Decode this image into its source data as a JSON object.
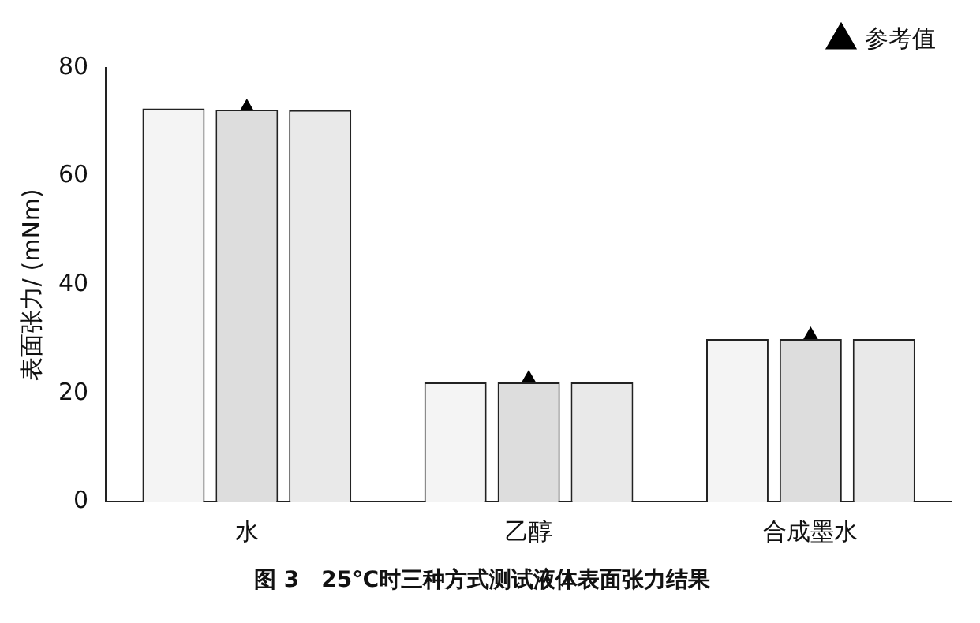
{
  "chart_data": {
    "type": "bar",
    "title": "图 3　25℃时三种方式测试液体表面张力结果",
    "ylabel": "表面张力/ (mNm)",
    "categories": [
      "水",
      "乙醇",
      "合成墨水"
    ],
    "series": [
      {
        "color": "#f4f4f4",
        "values": [
          72.5,
          22,
          30
        ]
      },
      {
        "color": "#dddddd",
        "values": [
          72.3,
          22,
          30
        ]
      },
      {
        "color": "#e9e9e9",
        "values": [
          72.2,
          22,
          30
        ]
      },
      {
        "type": "scatter",
        "name": "参考值",
        "color": "#000000",
        "marker": "triangle",
        "values": [
          72,
          22,
          30
        ]
      }
    ],
    "ylim": [
      0,
      80
    ],
    "yticks": [
      0,
      20,
      40,
      60,
      80
    ],
    "grid": false,
    "legend": "top right"
  }
}
